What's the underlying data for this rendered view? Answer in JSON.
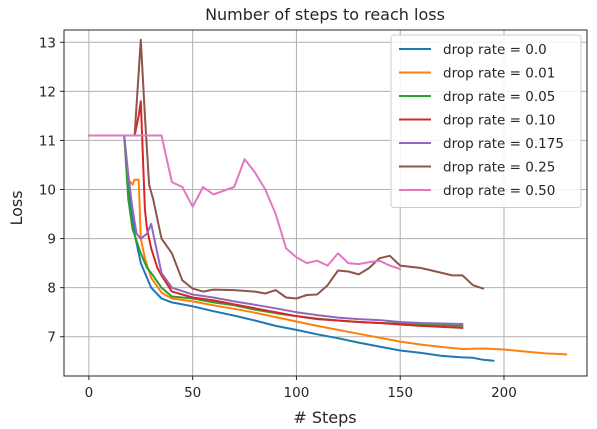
{
  "chart_data": {
    "type": "line",
    "title": "Number of steps to reach loss",
    "xlabel": "# Steps",
    "ylabel": "Loss",
    "xlim": [
      -12,
      240
    ],
    "ylim": [
      6.2,
      13.25
    ],
    "xticks": [
      0,
      50,
      100,
      150,
      200
    ],
    "yticks": [
      7,
      8,
      9,
      10,
      11,
      12,
      13
    ],
    "grid": true,
    "legend_position": "top-right",
    "series": [
      {
        "name": "drop rate = 0.0",
        "color": "#1f77b4",
        "points": [
          [
            0,
            11.1
          ],
          [
            17,
            11.1
          ],
          [
            19,
            10.2
          ],
          [
            20,
            9.7
          ],
          [
            22,
            9.1
          ],
          [
            25,
            8.5
          ],
          [
            27,
            8.3
          ],
          [
            30,
            8.0
          ],
          [
            35,
            7.78
          ],
          [
            40,
            7.7
          ],
          [
            50,
            7.62
          ],
          [
            60,
            7.52
          ],
          [
            70,
            7.43
          ],
          [
            80,
            7.33
          ],
          [
            90,
            7.22
          ],
          [
            100,
            7.14
          ],
          [
            110,
            7.05
          ],
          [
            120,
            6.97
          ],
          [
            130,
            6.88
          ],
          [
            140,
            6.8
          ],
          [
            150,
            6.72
          ],
          [
            160,
            6.67
          ],
          [
            170,
            6.61
          ],
          [
            180,
            6.58
          ],
          [
            185,
            6.57
          ],
          [
            190,
            6.53
          ],
          [
            195,
            6.51
          ]
        ]
      },
      {
        "name": "drop rate = 0.01",
        "color": "#ff7f0e",
        "points": [
          [
            0,
            11.1
          ],
          [
            17,
            11.1
          ],
          [
            19,
            10.2
          ],
          [
            21,
            10.1
          ],
          [
            22,
            10.2
          ],
          [
            24,
            10.2
          ],
          [
            25,
            9.0
          ],
          [
            27,
            8.6
          ],
          [
            30,
            8.2
          ],
          [
            35,
            7.9
          ],
          [
            40,
            7.78
          ],
          [
            50,
            7.72
          ],
          [
            60,
            7.64
          ],
          [
            70,
            7.57
          ],
          [
            80,
            7.49
          ],
          [
            90,
            7.4
          ],
          [
            100,
            7.31
          ],
          [
            110,
            7.22
          ],
          [
            120,
            7.14
          ],
          [
            130,
            7.06
          ],
          [
            140,
            6.98
          ],
          [
            150,
            6.9
          ],
          [
            160,
            6.84
          ],
          [
            170,
            6.79
          ],
          [
            180,
            6.75
          ],
          [
            190,
            6.76
          ],
          [
            200,
            6.74
          ],
          [
            210,
            6.7
          ],
          [
            220,
            6.66
          ],
          [
            230,
            6.64
          ]
        ]
      },
      {
        "name": "drop rate = 0.05",
        "color": "#2ca02c",
        "points": [
          [
            0,
            11.1
          ],
          [
            17,
            11.1
          ],
          [
            19,
            9.8
          ],
          [
            21,
            9.2
          ],
          [
            23,
            8.95
          ],
          [
            25,
            8.7
          ],
          [
            28,
            8.4
          ],
          [
            30,
            8.3
          ],
          [
            35,
            8.0
          ],
          [
            40,
            7.82
          ],
          [
            50,
            7.78
          ],
          [
            60,
            7.7
          ],
          [
            70,
            7.64
          ],
          [
            80,
            7.55
          ],
          [
            90,
            7.48
          ],
          [
            100,
            7.42
          ],
          [
            110,
            7.37
          ],
          [
            120,
            7.33
          ],
          [
            130,
            7.3
          ],
          [
            140,
            7.28
          ],
          [
            150,
            7.27
          ],
          [
            160,
            7.25
          ],
          [
            170,
            7.24
          ],
          [
            180,
            7.22
          ]
        ]
      },
      {
        "name": "drop rate = 0.10",
        "color": "#d62728",
        "points": [
          [
            0,
            11.1
          ],
          [
            22,
            11.1
          ],
          [
            24,
            11.5
          ],
          [
            25,
            11.8
          ],
          [
            27,
            9.6
          ],
          [
            28,
            9.2
          ],
          [
            30,
            8.8
          ],
          [
            33,
            8.4
          ],
          [
            35,
            8.25
          ],
          [
            40,
            7.92
          ],
          [
            50,
            7.8
          ],
          [
            60,
            7.74
          ],
          [
            70,
            7.66
          ],
          [
            80,
            7.58
          ],
          [
            90,
            7.5
          ],
          [
            100,
            7.42
          ],
          [
            110,
            7.36
          ],
          [
            120,
            7.33
          ],
          [
            130,
            7.3
          ],
          [
            140,
            7.28
          ],
          [
            150,
            7.25
          ],
          [
            160,
            7.22
          ],
          [
            170,
            7.2
          ],
          [
            180,
            7.18
          ]
        ]
      },
      {
        "name": "drop rate = 0.175",
        "color": "#9467bd",
        "points": [
          [
            0,
            11.1
          ],
          [
            17,
            11.1
          ],
          [
            19,
            10.3
          ],
          [
            21,
            9.6
          ],
          [
            23,
            9.1
          ],
          [
            25,
            9.0
          ],
          [
            28,
            9.1
          ],
          [
            30,
            9.3
          ],
          [
            32,
            8.9
          ],
          [
            35,
            8.3
          ],
          [
            40,
            8.0
          ],
          [
            50,
            7.86
          ],
          [
            60,
            7.8
          ],
          [
            70,
            7.72
          ],
          [
            80,
            7.65
          ],
          [
            90,
            7.58
          ],
          [
            100,
            7.5
          ],
          [
            110,
            7.44
          ],
          [
            120,
            7.39
          ],
          [
            130,
            7.36
          ],
          [
            140,
            7.34
          ],
          [
            150,
            7.3
          ],
          [
            160,
            7.28
          ],
          [
            170,
            7.27
          ],
          [
            180,
            7.26
          ]
        ]
      },
      {
        "name": "drop rate = 0.25",
        "color": "#8c564b",
        "points": [
          [
            0,
            11.1
          ],
          [
            22,
            11.1
          ],
          [
            25,
            13.05
          ],
          [
            27,
            11.5
          ],
          [
            29,
            10.1
          ],
          [
            31,
            9.8
          ],
          [
            35,
            9.0
          ],
          [
            40,
            8.7
          ],
          [
            45,
            8.15
          ],
          [
            50,
            7.98
          ],
          [
            55,
            7.92
          ],
          [
            60,
            7.96
          ],
          [
            70,
            7.95
          ],
          [
            80,
            7.92
          ],
          [
            85,
            7.88
          ],
          [
            90,
            7.95
          ],
          [
            95,
            7.8
          ],
          [
            100,
            7.78
          ],
          [
            105,
            7.85
          ],
          [
            110,
            7.86
          ],
          [
            115,
            8.05
          ],
          [
            120,
            8.35
          ],
          [
            125,
            8.33
          ],
          [
            130,
            8.27
          ],
          [
            135,
            8.4
          ],
          [
            140,
            8.6
          ],
          [
            145,
            8.65
          ],
          [
            150,
            8.45
          ],
          [
            160,
            8.4
          ],
          [
            170,
            8.3
          ],
          [
            175,
            8.25
          ],
          [
            180,
            8.25
          ],
          [
            185,
            8.05
          ],
          [
            190,
            7.98
          ]
        ]
      },
      {
        "name": "drop rate = 0.50",
        "color": "#e377c2",
        "points": [
          [
            0,
            11.1
          ],
          [
            35,
            11.1
          ],
          [
            40,
            10.15
          ],
          [
            45,
            10.05
          ],
          [
            50,
            9.65
          ],
          [
            55,
            10.05
          ],
          [
            60,
            9.9
          ],
          [
            70,
            10.05
          ],
          [
            75,
            10.62
          ],
          [
            80,
            10.35
          ],
          [
            85,
            10.0
          ],
          [
            90,
            9.5
          ],
          [
            95,
            8.8
          ],
          [
            100,
            8.62
          ],
          [
            105,
            8.5
          ],
          [
            110,
            8.55
          ],
          [
            115,
            8.45
          ],
          [
            120,
            8.7
          ],
          [
            125,
            8.5
          ],
          [
            130,
            8.48
          ],
          [
            135,
            8.52
          ],
          [
            140,
            8.55
          ],
          [
            145,
            8.45
          ],
          [
            150,
            8.38
          ]
        ]
      }
    ]
  }
}
